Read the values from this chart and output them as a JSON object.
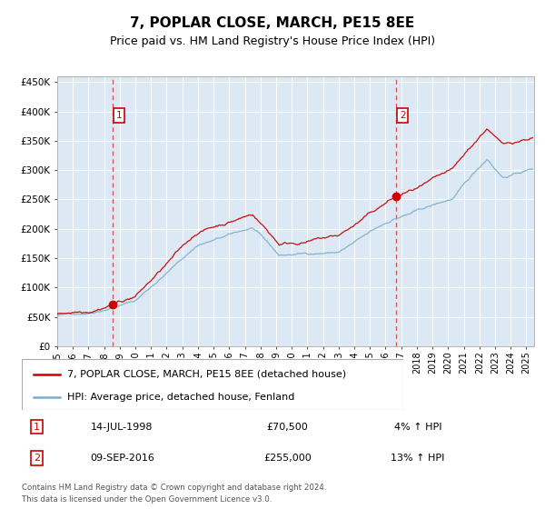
{
  "title": "7, POPLAR CLOSE, MARCH, PE15 8EE",
  "subtitle": "Price paid vs. HM Land Registry's House Price Index (HPI)",
  "title_fontsize": 11,
  "subtitle_fontsize": 9,
  "background_color": "#ffffff",
  "plot_bg_color": "#dce9f5",
  "grid_color": "#ffffff",
  "red_line_color": "#cc0000",
  "blue_line_color": "#7aadcc",
  "sale1_date": 1998.54,
  "sale1_price": 70500,
  "sale2_date": 2016.69,
  "sale2_price": 255000,
  "xmin": 1995.0,
  "xmax": 2025.5,
  "ymin": 0,
  "ymax": 460000,
  "yticks": [
    0,
    50000,
    100000,
    150000,
    200000,
    250000,
    300000,
    350000,
    400000,
    450000
  ],
  "ytick_labels": [
    "£0",
    "£50K",
    "£100K",
    "£150K",
    "£200K",
    "£250K",
    "£300K",
    "£350K",
    "£400K",
    "£450K"
  ],
  "xticks": [
    1995,
    1996,
    1997,
    1998,
    1999,
    2000,
    2001,
    2002,
    2003,
    2004,
    2005,
    2006,
    2007,
    2008,
    2009,
    2010,
    2011,
    2012,
    2013,
    2014,
    2015,
    2016,
    2017,
    2018,
    2019,
    2020,
    2021,
    2022,
    2023,
    2024,
    2025
  ],
  "legend_label_red": "7, POPLAR CLOSE, MARCH, PE15 8EE (detached house)",
  "legend_label_blue": "HPI: Average price, detached house, Fenland",
  "annotation1_label": "1",
  "annotation1_date": "14-JUL-1998",
  "annotation1_price": "£70,500",
  "annotation1_hpi": "4% ↑ HPI",
  "annotation2_label": "2",
  "annotation2_date": "09-SEP-2016",
  "annotation2_price": "£255,000",
  "annotation2_hpi": "13% ↑ HPI",
  "footer": "Contains HM Land Registry data © Crown copyright and database right 2024.\nThis data is licensed under the Open Government Licence v3.0."
}
